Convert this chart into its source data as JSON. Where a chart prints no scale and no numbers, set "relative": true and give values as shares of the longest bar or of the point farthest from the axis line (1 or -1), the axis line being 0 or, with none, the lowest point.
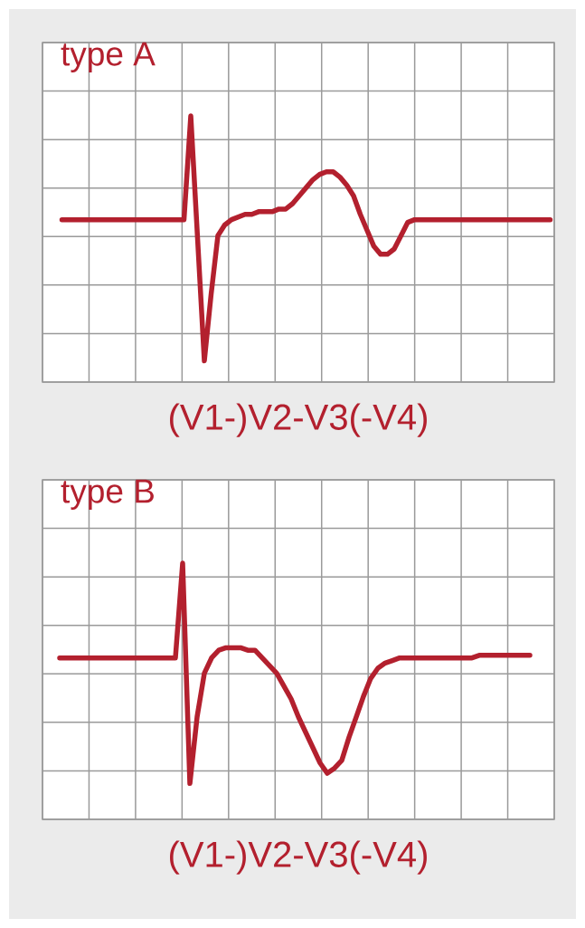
{
  "chart_data": [
    {
      "type": "line",
      "title": "type A",
      "xlabel": "(V1-)V2-V3(-V4)",
      "relative": true,
      "grid": true,
      "color": "#b3202e",
      "categories": [
        null,
        null,
        null,
        null,
        null,
        null,
        null,
        null,
        null,
        null,
        null,
        null,
        null,
        null,
        null,
        null,
        null,
        null,
        null,
        null,
        null,
        null,
        null,
        null,
        null,
        null,
        null,
        null,
        null,
        null,
        null,
        null,
        null,
        null,
        null,
        null,
        null,
        null,
        null,
        null,
        null,
        null,
        null,
        null,
        null,
        null,
        null,
        null,
        null,
        null,
        null,
        null,
        null,
        null,
        null,
        null,
        null,
        null,
        null,
        null,
        null,
        null,
        null,
        null,
        null,
        null,
        null,
        null,
        null,
        null,
        null,
        null,
        null
      ],
      "values": [
        0.61,
        0.61,
        0.61,
        0.61,
        0.61,
        0.61,
        0.61,
        0.61,
        0.61,
        0.61,
        0.61,
        0.61,
        0.61,
        0.61,
        0.61,
        0.61,
        0.61,
        0.61,
        0.61,
        1.0,
        0.54,
        0.08,
        0.33,
        0.55,
        0.59,
        0.61,
        0.62,
        0.63,
        0.63,
        0.64,
        0.64,
        0.64,
        0.65,
        0.65,
        0.67,
        0.7,
        0.73,
        0.76,
        0.78,
        0.79,
        0.79,
        0.77,
        0.74,
        0.7,
        0.63,
        0.57,
        0.51,
        0.48,
        0.48,
        0.5,
        0.55,
        0.6,
        0.61,
        0.61,
        0.61,
        0.61,
        0.61,
        0.61,
        0.61,
        0.61,
        0.61,
        0.61,
        0.61,
        0.61,
        0.61,
        0.61,
        0.61,
        0.61,
        0.61,
        0.61,
        0.61,
        0.61,
        0.61
      ]
    },
    {
      "type": "line",
      "title": "type B",
      "xlabel": "(V1-)V2-V3(-V4)",
      "relative": true,
      "grid": true,
      "color": "#b3202e",
      "categories": [
        null,
        null,
        null,
        null,
        null,
        null,
        null,
        null,
        null,
        null,
        null,
        null,
        null,
        null,
        null,
        null,
        null,
        null,
        null,
        null,
        null,
        null,
        null,
        null,
        null,
        null,
        null,
        null,
        null,
        null,
        null,
        null,
        null,
        null,
        null,
        null,
        null,
        null,
        null,
        null,
        null,
        null,
        null,
        null,
        null,
        null,
        null,
        null,
        null,
        null,
        null,
        null,
        null,
        null,
        null,
        null,
        null,
        null,
        null,
        null,
        null,
        null,
        null,
        null,
        null,
        null
      ],
      "values": [
        0.63,
        0.63,
        0.63,
        0.63,
        0.63,
        0.63,
        0.63,
        0.63,
        0.63,
        0.63,
        0.63,
        0.63,
        0.63,
        0.63,
        0.63,
        0.63,
        0.63,
        1.0,
        0.14,
        0.4,
        0.57,
        0.63,
        0.66,
        0.67,
        0.67,
        0.67,
        0.66,
        0.66,
        0.63,
        0.6,
        0.57,
        0.52,
        0.47,
        0.4,
        0.34,
        0.28,
        0.22,
        0.18,
        0.2,
        0.23,
        0.32,
        0.4,
        0.48,
        0.55,
        0.59,
        0.61,
        0.62,
        0.63,
        0.63,
        0.63,
        0.63,
        0.63,
        0.63,
        0.63,
        0.63,
        0.63,
        0.63,
        0.63,
        0.64,
        0.64,
        0.64,
        0.64,
        0.64,
        0.64,
        0.64,
        0.64
      ]
    }
  ]
}
